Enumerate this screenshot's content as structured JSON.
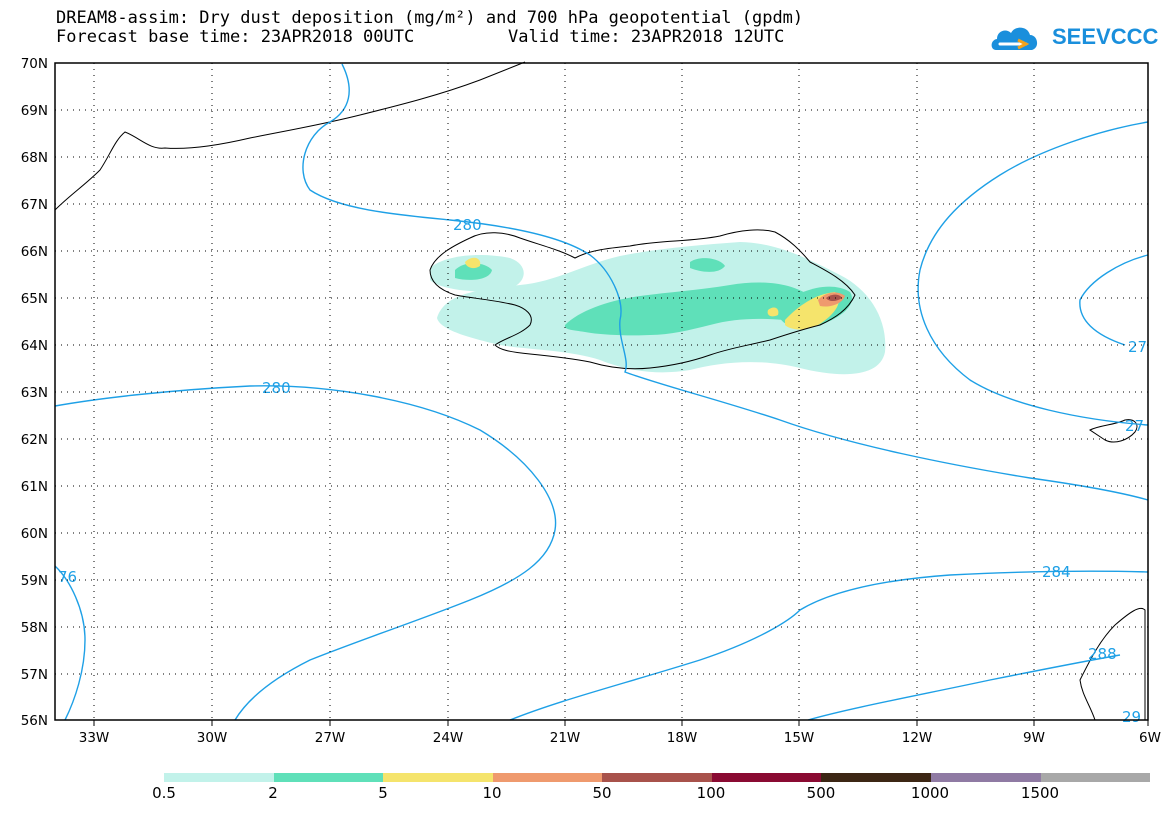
{
  "title": {
    "line1": "DREAM8-assim: Dry dust deposition (mg/m²) and 700 hPa geopotential (gpdm)",
    "base_time": "Forecast base time: 23APR2018 00UTC",
    "valid_time": "Valid time: 23APR2018 12UTC"
  },
  "logo": {
    "text": "SEEVCCC",
    "icon": "cloud-icon",
    "color": "#1a8fdc"
  },
  "map": {
    "lat_labels": [
      "70N",
      "69N",
      "68N",
      "67N",
      "66N",
      "65N",
      "64N",
      "63N",
      "62N",
      "61N",
      "60N",
      "59N",
      "58N",
      "57N",
      "56N"
    ],
    "lon_labels": [
      "33W",
      "30W",
      "27W",
      "24W",
      "21W",
      "18W",
      "15W",
      "12W",
      "9W",
      "6W"
    ],
    "contour_labels": [
      "280",
      "280",
      "284",
      "76",
      "27",
      "27",
      "288",
      "29"
    ],
    "contour_color": "#1ea0e6"
  },
  "legend": {
    "colors": [
      "#c2f2ea",
      "#5fe0b9",
      "#f5e46c",
      "#ef9a6e",
      "#a8524b",
      "#8a0a32",
      "#3c2614",
      "#8f7aa3",
      "#a8a8a8"
    ],
    "labels": [
      "0.5",
      "2",
      "5",
      "10",
      "50",
      "100",
      "500",
      "1000",
      "1500"
    ]
  }
}
